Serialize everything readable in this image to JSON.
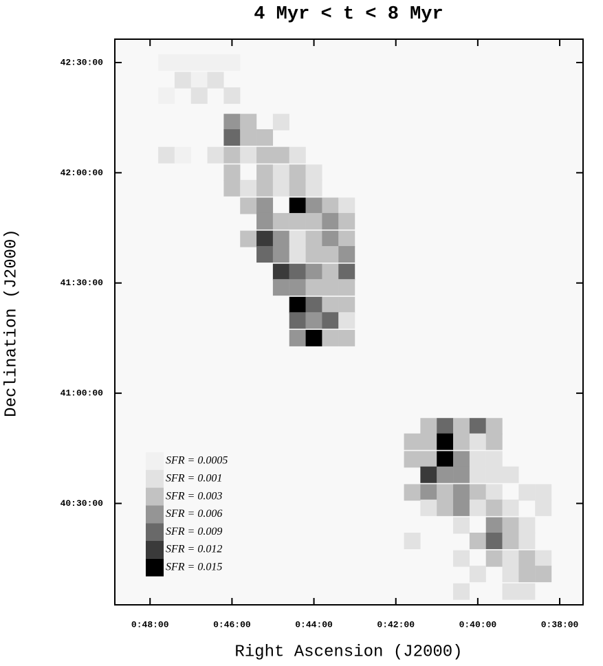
{
  "chart_data": {
    "type": "heatmap",
    "title": "4 Myr < t < 8 Myr",
    "x_label": "Right Ascension (J2000)",
    "y_label": "Declination (J2000)",
    "xlim": [
      48.86,
      37.43
    ],
    "ylim": [
      40.04,
      42.606
    ],
    "xticks": [
      {
        "value": 48,
        "label": "0:48:00"
      },
      {
        "value": 46,
        "label": "0:46:00"
      },
      {
        "value": 44,
        "label": "0:44:00"
      },
      {
        "value": 42,
        "label": "0:42:00"
      },
      {
        "value": 40,
        "label": "0:40:00"
      },
      {
        "value": 38,
        "label": "0:38:00"
      }
    ],
    "yticks": [
      {
        "value": 42.5,
        "label": "42:30:00"
      },
      {
        "value": 42,
        "label": "42:00:00"
      },
      {
        "value": 41.5,
        "label": "41:30:00"
      },
      {
        "value": 41,
        "label": "41:00:00"
      },
      {
        "value": 40.5,
        "label": "40:30:00"
      }
    ],
    "background": "#f8f8f8",
    "levels": [
      {
        "value": 0.0005,
        "label": "SFR = 0.0005",
        "color": "#f1f1f1"
      },
      {
        "value": 0.001,
        "label": "SFR = 0.001",
        "color": "#e2e2e2"
      },
      {
        "value": 0.003,
        "label": "SFR = 0.003",
        "color": "#c2c2c2"
      },
      {
        "value": 0.006,
        "label": "SFR = 0.006",
        "color": "#959595"
      },
      {
        "value": 0.009,
        "label": "SFR = 0.009",
        "color": "#696969"
      },
      {
        "value": 0.012,
        "label": "SFR = 0.012",
        "color": "#3a3a3a"
      },
      {
        "value": 0.015,
        "label": "SFR = 0.015",
        "color": "#000000"
      }
    ],
    "points": [
      {
        "x": 47.6,
        "y": 42.5,
        "value": 0.0005
      },
      {
        "x": 47.2,
        "y": 42.5,
        "value": 0.0005
      },
      {
        "x": 46.8,
        "y": 42.5,
        "value": 0.0005
      },
      {
        "x": 46.4,
        "y": 42.5,
        "value": 0.0005
      },
      {
        "x": 46.0,
        "y": 42.5,
        "value": 0.0005
      },
      {
        "x": 47.2,
        "y": 42.42,
        "value": 0.001
      },
      {
        "x": 46.8,
        "y": 42.42,
        "value": 0.0005
      },
      {
        "x": 46.4,
        "y": 42.42,
        "value": 0.001
      },
      {
        "x": 46.0,
        "y": 42.35,
        "value": 0.001
      },
      {
        "x": 47.6,
        "y": 42.35,
        "value": 0.0005
      },
      {
        "x": 46.8,
        "y": 42.35,
        "value": 0.001
      },
      {
        "x": 46.0,
        "y": 42.23,
        "value": 0.006
      },
      {
        "x": 46.0,
        "y": 42.16,
        "value": 0.009
      },
      {
        "x": 45.6,
        "y": 42.16,
        "value": 0.003
      },
      {
        "x": 45.2,
        "y": 42.16,
        "value": 0.003
      },
      {
        "x": 45.6,
        "y": 42.23,
        "value": 0.003
      },
      {
        "x": 44.8,
        "y": 42.23,
        "value": 0.001
      },
      {
        "x": 47.6,
        "y": 42.08,
        "value": 0.001
      },
      {
        "x": 47.2,
        "y": 42.08,
        "value": 0.0005
      },
      {
        "x": 46.4,
        "y": 42.08,
        "value": 0.001
      },
      {
        "x": 46.0,
        "y": 42.08,
        "value": 0.003
      },
      {
        "x": 45.6,
        "y": 42.08,
        "value": 0.001
      },
      {
        "x": 45.2,
        "y": 42.08,
        "value": 0.003
      },
      {
        "x": 44.8,
        "y": 42.08,
        "value": 0.003
      },
      {
        "x": 44.4,
        "y": 42.08,
        "value": 0.001
      },
      {
        "x": 46.0,
        "y": 42.0,
        "value": 0.003
      },
      {
        "x": 45.2,
        "y": 42.0,
        "value": 0.003
      },
      {
        "x": 44.8,
        "y": 42.0,
        "value": 0.001
      },
      {
        "x": 44.4,
        "y": 42.0,
        "value": 0.003
      },
      {
        "x": 44.0,
        "y": 42.0,
        "value": 0.001
      },
      {
        "x": 46.0,
        "y": 41.93,
        "value": 0.003
      },
      {
        "x": 45.6,
        "y": 41.93,
        "value": 0.001
      },
      {
        "x": 45.2,
        "y": 41.93,
        "value": 0.003
      },
      {
        "x": 44.8,
        "y": 41.93,
        "value": 0.001
      },
      {
        "x": 44.4,
        "y": 41.93,
        "value": 0.003
      },
      {
        "x": 44.0,
        "y": 41.93,
        "value": 0.001
      },
      {
        "x": 45.6,
        "y": 41.85,
        "value": 0.003
      },
      {
        "x": 45.2,
        "y": 41.85,
        "value": 0.006
      },
      {
        "x": 44.4,
        "y": 41.85,
        "value": 0.015
      },
      {
        "x": 44.0,
        "y": 41.85,
        "value": 0.006
      },
      {
        "x": 43.6,
        "y": 41.85,
        "value": 0.003
      },
      {
        "x": 43.2,
        "y": 41.85,
        "value": 0.001
      },
      {
        "x": 45.2,
        "y": 41.78,
        "value": 0.006
      },
      {
        "x": 44.8,
        "y": 41.78,
        "value": 0.003
      },
      {
        "x": 44.4,
        "y": 41.78,
        "value": 0.003
      },
      {
        "x": 44.0,
        "y": 41.78,
        "value": 0.003
      },
      {
        "x": 43.6,
        "y": 41.78,
        "value": 0.006
      },
      {
        "x": 43.2,
        "y": 41.78,
        "value": 0.003
      },
      {
        "x": 45.6,
        "y": 41.7,
        "value": 0.003
      },
      {
        "x": 45.2,
        "y": 41.7,
        "value": 0.012
      },
      {
        "x": 44.8,
        "y": 41.7,
        "value": 0.006
      },
      {
        "x": 44.4,
        "y": 41.7,
        "value": 0.001
      },
      {
        "x": 44.0,
        "y": 41.7,
        "value": 0.003
      },
      {
        "x": 43.6,
        "y": 41.7,
        "value": 0.006
      },
      {
        "x": 43.2,
        "y": 41.7,
        "value": 0.003
      },
      {
        "x": 45.2,
        "y": 41.63,
        "value": 0.009
      },
      {
        "x": 44.8,
        "y": 41.63,
        "value": 0.006
      },
      {
        "x": 44.4,
        "y": 41.63,
        "value": 0.001
      },
      {
        "x": 44.0,
        "y": 41.63,
        "value": 0.003
      },
      {
        "x": 43.6,
        "y": 41.63,
        "value": 0.003
      },
      {
        "x": 43.2,
        "y": 41.63,
        "value": 0.006
      },
      {
        "x": 44.8,
        "y": 41.55,
        "value": 0.012
      },
      {
        "x": 44.4,
        "y": 41.55,
        "value": 0.009
      },
      {
        "x": 44.0,
        "y": 41.55,
        "value": 0.006
      },
      {
        "x": 43.6,
        "y": 41.55,
        "value": 0.003
      },
      {
        "x": 43.2,
        "y": 41.55,
        "value": 0.009
      },
      {
        "x": 44.8,
        "y": 41.48,
        "value": 0.006
      },
      {
        "x": 44.4,
        "y": 41.48,
        "value": 0.006
      },
      {
        "x": 44.0,
        "y": 41.48,
        "value": 0.003
      },
      {
        "x": 43.6,
        "y": 41.48,
        "value": 0.003
      },
      {
        "x": 43.2,
        "y": 41.48,
        "value": 0.003
      },
      {
        "x": 44.4,
        "y": 41.4,
        "value": 0.015
      },
      {
        "x": 44.0,
        "y": 41.4,
        "value": 0.009
      },
      {
        "x": 43.6,
        "y": 41.4,
        "value": 0.003
      },
      {
        "x": 43.2,
        "y": 41.4,
        "value": 0.003
      },
      {
        "x": 44.4,
        "y": 41.33,
        "value": 0.009
      },
      {
        "x": 44.0,
        "y": 41.33,
        "value": 0.006
      },
      {
        "x": 43.6,
        "y": 41.33,
        "value": 0.009
      },
      {
        "x": 43.2,
        "y": 41.33,
        "value": 0.001
      },
      {
        "x": 44.4,
        "y": 41.25,
        "value": 0.006
      },
      {
        "x": 44.0,
        "y": 41.25,
        "value": 0.015
      },
      {
        "x": 43.6,
        "y": 41.25,
        "value": 0.003
      },
      {
        "x": 43.2,
        "y": 41.25,
        "value": 0.003
      },
      {
        "x": 41.2,
        "y": 40.85,
        "value": 0.003
      },
      {
        "x": 40.8,
        "y": 40.85,
        "value": 0.009
      },
      {
        "x": 40.4,
        "y": 40.85,
        "value": 0.003
      },
      {
        "x": 40.0,
        "y": 40.85,
        "value": 0.009
      },
      {
        "x": 39.6,
        "y": 40.85,
        "value": 0.003
      },
      {
        "x": 41.6,
        "y": 40.78,
        "value": 0.003
      },
      {
        "x": 41.2,
        "y": 40.78,
        "value": 0.003
      },
      {
        "x": 40.8,
        "y": 40.78,
        "value": 0.015
      },
      {
        "x": 40.4,
        "y": 40.78,
        "value": 0.003
      },
      {
        "x": 40.0,
        "y": 40.78,
        "value": 0.001
      },
      {
        "x": 39.6,
        "y": 40.78,
        "value": 0.003
      },
      {
        "x": 41.6,
        "y": 40.7,
        "value": 0.003
      },
      {
        "x": 41.2,
        "y": 40.7,
        "value": 0.003
      },
      {
        "x": 40.8,
        "y": 40.7,
        "value": 0.015
      },
      {
        "x": 40.4,
        "y": 40.7,
        "value": 0.006
      },
      {
        "x": 40.0,
        "y": 40.7,
        "value": 0.001
      },
      {
        "x": 39.6,
        "y": 40.7,
        "value": 0.001
      },
      {
        "x": 41.2,
        "y": 40.63,
        "value": 0.012
      },
      {
        "x": 40.8,
        "y": 40.63,
        "value": 0.006
      },
      {
        "x": 40.4,
        "y": 40.63,
        "value": 0.006
      },
      {
        "x": 40.0,
        "y": 40.63,
        "value": 0.001
      },
      {
        "x": 39.6,
        "y": 40.63,
        "value": 0.001
      },
      {
        "x": 39.2,
        "y": 40.63,
        "value": 0.001
      },
      {
        "x": 41.6,
        "y": 40.55,
        "value": 0.003
      },
      {
        "x": 41.2,
        "y": 40.55,
        "value": 0.006
      },
      {
        "x": 40.8,
        "y": 40.55,
        "value": 0.003
      },
      {
        "x": 40.4,
        "y": 40.55,
        "value": 0.006
      },
      {
        "x": 40.0,
        "y": 40.55,
        "value": 0.003
      },
      {
        "x": 39.6,
        "y": 40.55,
        "value": 0.001
      },
      {
        "x": 38.8,
        "y": 40.55,
        "value": 0.001
      },
      {
        "x": 38.4,
        "y": 40.55,
        "value": 0.001
      },
      {
        "x": 41.2,
        "y": 40.48,
        "value": 0.001
      },
      {
        "x": 40.8,
        "y": 40.48,
        "value": 0.003
      },
      {
        "x": 40.4,
        "y": 40.48,
        "value": 0.006
      },
      {
        "x": 40.0,
        "y": 40.48,
        "value": 0.001
      },
      {
        "x": 39.6,
        "y": 40.48,
        "value": 0.003
      },
      {
        "x": 39.2,
        "y": 40.48,
        "value": 0.001
      },
      {
        "x": 38.4,
        "y": 40.48,
        "value": 0.001
      },
      {
        "x": 40.4,
        "y": 40.4,
        "value": 0.001
      },
      {
        "x": 39.6,
        "y": 40.4,
        "value": 0.006
      },
      {
        "x": 39.2,
        "y": 40.4,
        "value": 0.003
      },
      {
        "x": 38.8,
        "y": 40.4,
        "value": 0.001
      },
      {
        "x": 41.6,
        "y": 40.33,
        "value": 0.001
      },
      {
        "x": 40.0,
        "y": 40.33,
        "value": 0.003
      },
      {
        "x": 39.6,
        "y": 40.33,
        "value": 0.009
      },
      {
        "x": 39.2,
        "y": 40.33,
        "value": 0.003
      },
      {
        "x": 38.8,
        "y": 40.33,
        "value": 0.001
      },
      {
        "x": 40.4,
        "y": 40.25,
        "value": 0.001
      },
      {
        "x": 39.6,
        "y": 40.25,
        "value": 0.003
      },
      {
        "x": 39.2,
        "y": 40.25,
        "value": 0.001
      },
      {
        "x": 38.8,
        "y": 40.25,
        "value": 0.003
      },
      {
        "x": 38.4,
        "y": 40.25,
        "value": 0.001
      },
      {
        "x": 40.0,
        "y": 40.18,
        "value": 0.001
      },
      {
        "x": 39.2,
        "y": 40.18,
        "value": 0.001
      },
      {
        "x": 38.8,
        "y": 40.18,
        "value": 0.003
      },
      {
        "x": 38.4,
        "y": 40.18,
        "value": 0.003
      },
      {
        "x": 40.4,
        "y": 40.1,
        "value": 0.001
      },
      {
        "x": 39.2,
        "y": 40.1,
        "value": 0.001
      },
      {
        "x": 38.8,
        "y": 40.1,
        "value": 0.001
      }
    ]
  }
}
